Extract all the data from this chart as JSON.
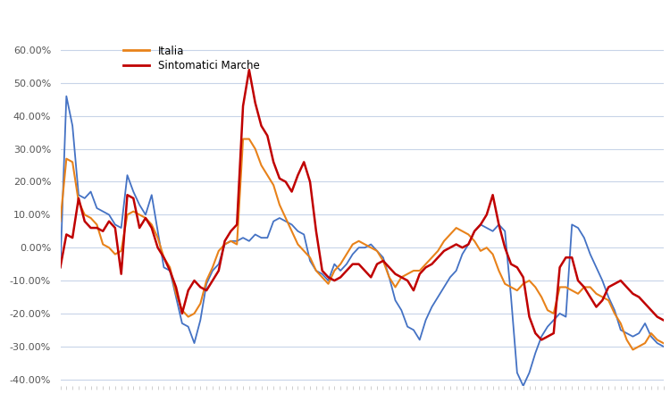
{
  "legend": [
    "Italia",
    "Sintomatici Marche"
  ],
  "line_colors": {
    "italia": "#E8821A",
    "sintomatici": "#C00000",
    "marche": "#4472C4"
  },
  "ylim": [
    -0.42,
    0.63
  ],
  "yticks": [
    -0.4,
    -0.3,
    -0.2,
    -0.1,
    0.0,
    0.1,
    0.2,
    0.3,
    0.4,
    0.5,
    0.6
  ],
  "italia": [
    0.08,
    0.27,
    0.26,
    0.14,
    0.1,
    0.09,
    0.07,
    0.01,
    0.0,
    -0.02,
    -0.01,
    0.1,
    0.11,
    0.1,
    0.09,
    0.07,
    0.03,
    -0.03,
    -0.06,
    -0.14,
    -0.19,
    -0.21,
    -0.2,
    -0.17,
    -0.1,
    -0.06,
    -0.01,
    0.01,
    0.02,
    0.01,
    0.33,
    0.33,
    0.3,
    0.25,
    0.22,
    0.19,
    0.13,
    0.09,
    0.05,
    0.01,
    -0.01,
    -0.03,
    -0.07,
    -0.09,
    -0.11,
    -0.07,
    -0.05,
    -0.02,
    0.01,
    0.02,
    0.01,
    0.0,
    -0.01,
    -0.04,
    -0.09,
    -0.12,
    -0.09,
    -0.08,
    -0.07,
    -0.07,
    -0.05,
    -0.03,
    -0.01,
    0.02,
    0.04,
    0.06,
    0.05,
    0.04,
    0.02,
    -0.01,
    0.0,
    -0.02,
    -0.07,
    -0.11,
    -0.12,
    -0.13,
    -0.11,
    -0.1,
    -0.12,
    -0.15,
    -0.19,
    -0.2,
    -0.12,
    -0.12,
    -0.13,
    -0.14,
    -0.12,
    -0.12,
    -0.14,
    -0.15,
    -0.16,
    -0.2,
    -0.23,
    -0.28,
    -0.31,
    -0.3,
    -0.29,
    -0.26,
    -0.28,
    -0.29
  ],
  "marche": [
    -0.06,
    0.46,
    0.37,
    0.16,
    0.15,
    0.17,
    0.12,
    0.11,
    0.1,
    0.07,
    0.06,
    0.22,
    0.17,
    0.13,
    0.1,
    0.16,
    0.05,
    -0.06,
    -0.07,
    -0.15,
    -0.23,
    -0.24,
    -0.29,
    -0.22,
    -0.11,
    -0.07,
    -0.05,
    0.01,
    0.02,
    0.02,
    0.03,
    0.02,
    0.04,
    0.03,
    0.03,
    0.08,
    0.09,
    0.08,
    0.07,
    0.05,
    0.04,
    -0.04,
    -0.07,
    -0.08,
    -0.1,
    -0.05,
    -0.07,
    -0.05,
    -0.02,
    0.0,
    0.0,
    0.01,
    -0.01,
    -0.03,
    -0.09,
    -0.16,
    -0.19,
    -0.24,
    -0.25,
    -0.28,
    -0.22,
    -0.18,
    -0.15,
    -0.12,
    -0.09,
    -0.07,
    -0.02,
    0.01,
    0.05,
    0.07,
    0.06,
    0.05,
    0.07,
    0.05,
    -0.15,
    -0.38,
    -0.42,
    -0.38,
    -0.32,
    -0.27,
    -0.24,
    -0.22,
    -0.2,
    -0.21,
    0.07,
    0.06,
    0.03,
    -0.02,
    -0.06,
    -0.1,
    -0.15,
    -0.19,
    -0.25,
    -0.26,
    -0.27,
    -0.26,
    -0.23,
    -0.27,
    -0.29,
    -0.3
  ],
  "sintomatici": [
    -0.06,
    0.04,
    0.03,
    0.15,
    0.08,
    0.06,
    0.06,
    0.05,
    0.08,
    0.06,
    -0.08,
    0.16,
    0.15,
    0.06,
    0.09,
    0.06,
    0.0,
    -0.03,
    -0.07,
    -0.12,
    -0.2,
    -0.13,
    -0.1,
    -0.12,
    -0.13,
    -0.1,
    -0.07,
    0.02,
    0.05,
    0.07,
    0.43,
    0.54,
    0.44,
    0.37,
    0.34,
    0.26,
    0.21,
    0.2,
    0.17,
    0.22,
    0.26,
    0.2,
    0.05,
    -0.07,
    -0.09,
    -0.1,
    -0.09,
    -0.07,
    -0.05,
    -0.05,
    -0.07,
    -0.09,
    -0.05,
    -0.04,
    -0.06,
    -0.08,
    -0.09,
    -0.1,
    -0.13,
    -0.08,
    -0.06,
    -0.05,
    -0.03,
    -0.01,
    0.0,
    0.01,
    0.0,
    0.01,
    0.05,
    0.07,
    0.1,
    0.16,
    0.07,
    0.0,
    -0.05,
    -0.06,
    -0.09,
    -0.21,
    -0.26,
    -0.28,
    -0.27,
    -0.26,
    -0.06,
    -0.03,
    -0.03,
    -0.1,
    -0.12,
    -0.15,
    -0.18,
    -0.16,
    -0.12,
    -0.11,
    -0.1,
    -0.12,
    -0.14,
    -0.15,
    -0.17,
    -0.19,
    -0.21,
    -0.22
  ]
}
